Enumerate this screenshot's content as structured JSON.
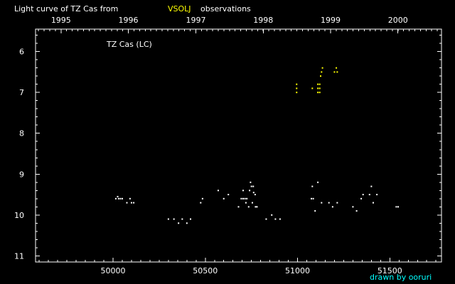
{
  "chart_data": {
    "type": "scatter",
    "title_prefix": "Light curve of TZ Cas from",
    "title_source": "VSOLJ",
    "title_suffix": "observations",
    "panel_label": "TZ Cas (LC)",
    "credit": "drawn by ooruri",
    "x_range": [
      49580,
      51780
    ],
    "y_range": [
      5.45,
      11.15
    ],
    "y_inverted": true,
    "bottom_ticks": [
      {
        "value": 50000,
        "label": "50000"
      },
      {
        "value": 50500,
        "label": "50500"
      },
      {
        "value": 51000,
        "label": "51000"
      },
      {
        "value": 51500,
        "label": "51500"
      }
    ],
    "top_ticks": [
      {
        "value": 49718,
        "label": "1995"
      },
      {
        "value": 50083,
        "label": "1996"
      },
      {
        "value": 50449,
        "label": "1997"
      },
      {
        "value": 50814,
        "label": "1998"
      },
      {
        "value": 51179,
        "label": "1999"
      },
      {
        "value": 51544,
        "label": "2000"
      }
    ],
    "y_ticks": [
      {
        "value": 6,
        "label": "6"
      },
      {
        "value": 7,
        "label": "7"
      },
      {
        "value": 8,
        "label": "8"
      },
      {
        "value": 9,
        "label": "9"
      },
      {
        "value": 10,
        "label": "10"
      },
      {
        "value": 11,
        "label": "11"
      }
    ],
    "series": [
      {
        "color": "#ffffff",
        "points": [
          [
            50015,
            9.6
          ],
          [
            50025,
            9.55
          ],
          [
            50030,
            9.6
          ],
          [
            50040,
            9.6
          ],
          [
            50050,
            9.6
          ],
          [
            50075,
            9.7
          ],
          [
            50092,
            9.6
          ],
          [
            50100,
            9.7
          ],
          [
            50112,
            9.7
          ],
          [
            50300,
            10.1
          ],
          [
            50330,
            10.1
          ],
          [
            50355,
            10.2
          ],
          [
            50375,
            10.1
          ],
          [
            50400,
            10.2
          ],
          [
            50420,
            10.1
          ],
          [
            50475,
            9.7
          ],
          [
            50485,
            9.6
          ],
          [
            50570,
            9.4
          ],
          [
            50600,
            9.6
          ],
          [
            50625,
            9.5
          ],
          [
            50680,
            9.8
          ],
          [
            50695,
            9.6
          ],
          [
            50705,
            9.4
          ],
          [
            50705,
            9.6
          ],
          [
            50715,
            9.6
          ],
          [
            50720,
            9.7
          ],
          [
            50725,
            9.6
          ],
          [
            50735,
            9.8
          ],
          [
            50740,
            9.4
          ],
          [
            50745,
            9.2
          ],
          [
            50750,
            9.3
          ],
          [
            50755,
            9.7
          ],
          [
            50760,
            9.3
          ],
          [
            50762,
            9.45
          ],
          [
            50770,
            9.5
          ],
          [
            50772,
            9.8
          ],
          [
            50780,
            9.8
          ],
          [
            50830,
            10.1
          ],
          [
            50860,
            10.0
          ],
          [
            50880,
            10.1
          ],
          [
            50905,
            10.1
          ],
          [
            51075,
            9.6
          ],
          [
            51080,
            9.3
          ],
          [
            51085,
            9.6
          ],
          [
            51095,
            9.9
          ],
          [
            51110,
            9.2
          ],
          [
            51130,
            9.7
          ],
          [
            51170,
            9.7
          ],
          [
            51190,
            9.8
          ],
          [
            51215,
            9.7
          ],
          [
            51300,
            9.8
          ],
          [
            51320,
            9.9
          ],
          [
            51345,
            9.6
          ],
          [
            51355,
            9.5
          ],
          [
            51390,
            9.5
          ],
          [
            51400,
            9.3
          ],
          [
            51410,
            9.7
          ],
          [
            51430,
            9.5
          ],
          [
            51535,
            9.8
          ],
          [
            51545,
            9.8
          ]
        ]
      },
      {
        "color": "#ffff00",
        "points": [
          [
            50995,
            6.8
          ],
          [
            50995,
            6.9
          ],
          [
            50995,
            7.0
          ],
          [
            51080,
            6.9
          ],
          [
            51110,
            6.8
          ],
          [
            51110,
            6.9
          ],
          [
            51110,
            7.0
          ],
          [
            51120,
            6.8
          ],
          [
            51120,
            6.9
          ],
          [
            51120,
            7.0
          ],
          [
            51125,
            6.6
          ],
          [
            51130,
            6.5
          ],
          [
            51135,
            6.4
          ],
          [
            51200,
            6.5
          ],
          [
            51210,
            6.4
          ],
          [
            51215,
            6.5
          ]
        ]
      }
    ]
  }
}
